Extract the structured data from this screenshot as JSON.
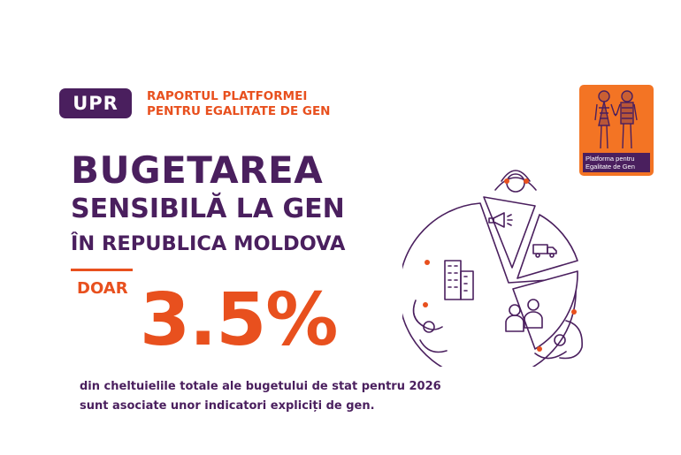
{
  "badge": {
    "label": "UPR"
  },
  "report": {
    "line1": "RAPORTUL PLATFORMEI",
    "line2": "PENTRU EGALITATE DE GEN"
  },
  "title": {
    "line1": "BUGETAREA",
    "line2": "SENSIBILĂ LA GEN",
    "line3": "ÎN REPUBLICA MOLDOVA"
  },
  "stat": {
    "prefix": "DOAR",
    "value": "3.5%"
  },
  "description": {
    "line1": "din cheltuielile totale ale bugetului de stat pentru 2026",
    "line2": "sunt asociate unor indicatori expliciți de gen."
  },
  "logo": {
    "line1": "Platforma pentru",
    "line2": "Egalitate de Gen"
  },
  "colors": {
    "purple": "#4a1f5e",
    "orange": "#e8501e",
    "logo_bg": "#f37424"
  }
}
